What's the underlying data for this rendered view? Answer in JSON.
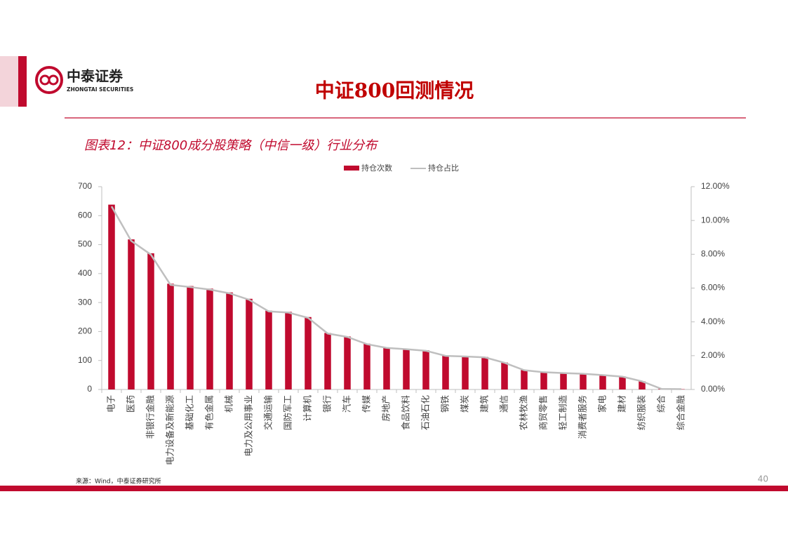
{
  "header": {
    "logo_cn": "中泰证券",
    "logo_en": "ZHONGTAI SECURITIES",
    "title": "中证800回测情况"
  },
  "chart_data": {
    "type": "bar_line",
    "title": "图表12：中证800成分股策略（中信一级）行业分布",
    "categories": [
      "电子",
      "医药",
      "非银行金融",
      "电力设备及新能源",
      "基础化工",
      "有色金属",
      "机械",
      "电力及公用事业",
      "交通运输",
      "国防军工",
      "计算机",
      "银行",
      "汽车",
      "传媒",
      "房地产",
      "食品饮料",
      "石油石化",
      "钢铁",
      "煤炭",
      "建筑",
      "通信",
      "农林牧渔",
      "商贸零售",
      "轻工制造",
      "消费者服务",
      "家电",
      "建材",
      "纺织服装",
      "综合",
      "综合金融"
    ],
    "series": [
      {
        "name": "持仓次数",
        "type": "bar",
        "color": "#c00a2e",
        "values": [
          638,
          518,
          470,
          365,
          357,
          348,
          335,
          313,
          272,
          268,
          250,
          195,
          183,
          158,
          145,
          140,
          135,
          117,
          115,
          112,
          93,
          67,
          60,
          57,
          55,
          50,
          45,
          28,
          2,
          1
        ]
      },
      {
        "name": "持仓占比",
        "type": "line",
        "axis": "y2",
        "color": "#bfbfbf",
        "values": [
          10.83,
          8.79,
          7.98,
          6.19,
          6.06,
          5.91,
          5.69,
          5.31,
          4.62,
          4.55,
          4.24,
          3.31,
          3.11,
          2.68,
          2.46,
          2.38,
          2.29,
          1.99,
          1.95,
          1.9,
          1.58,
          1.14,
          1.02,
          0.97,
          0.93,
          0.85,
          0.76,
          0.48,
          0.03,
          0.02
        ]
      }
    ],
    "ylim": [
      0,
      700
    ],
    "yticks": [
      0,
      100,
      200,
      300,
      400,
      500,
      600,
      700
    ],
    "y2lim": [
      0,
      12
    ],
    "y2ticks": [
      {
        "value": 0,
        "label": "0.00%"
      },
      {
        "value": 2,
        "label": "2.00%"
      },
      {
        "value": 4,
        "label": "4.00%"
      },
      {
        "value": 6,
        "label": "6.00%"
      },
      {
        "value": 8,
        "label": "8.00%"
      },
      {
        "value": 10,
        "label": "10.00%"
      },
      {
        "value": 12,
        "label": "12.00%"
      }
    ],
    "legend": "top"
  },
  "footer": {
    "source": "来源：Wind，中泰证券研究所",
    "page": "40"
  }
}
